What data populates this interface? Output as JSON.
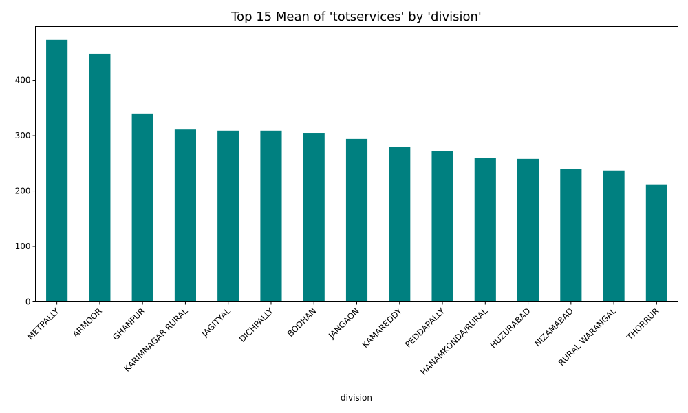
{
  "chart_data": {
    "type": "bar",
    "title": "Top 15 Mean of 'totservices' by 'division'",
    "xlabel": "division",
    "ylabel": "",
    "categories": [
      "METPALLY",
      "ARMOOR",
      "GHANPUR",
      "KARIMNAGAR RURAL",
      "JAGITYAL",
      "DICHPALLY",
      "BODHAN",
      "JANGAON",
      "KAMAREDDY",
      "PEDDAPALLY",
      "HANAMKONDA/RURAL",
      "HUZURABAD",
      "NIZAMABAD",
      "RURAL WARANGAL",
      "THORRUR"
    ],
    "values": [
      473,
      448,
      340,
      311,
      309,
      309,
      305,
      294,
      279,
      272,
      260,
      258,
      240,
      237,
      211
    ],
    "ylim": [
      0,
      497
    ],
    "yticks": [
      0,
      100,
      200,
      300,
      400
    ],
    "grid": false,
    "legend": "none",
    "bar_color": "#008080"
  }
}
